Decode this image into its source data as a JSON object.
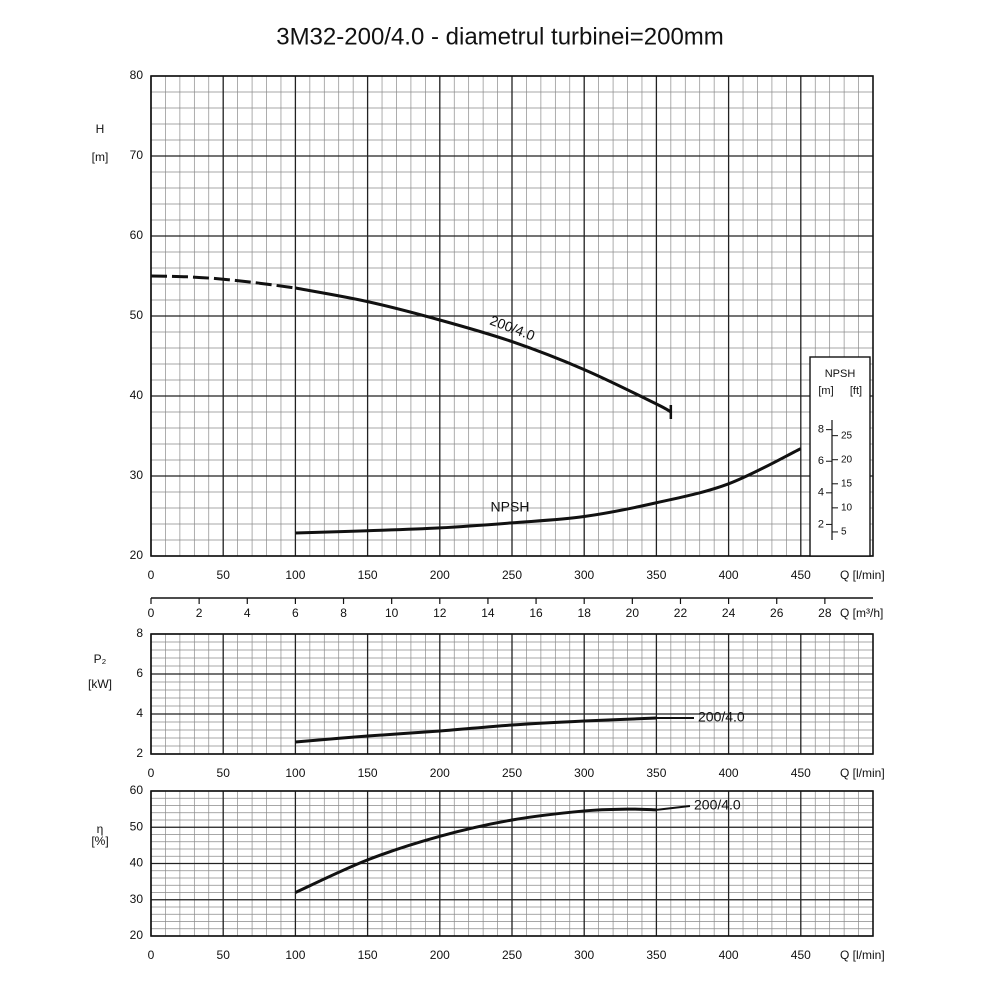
{
  "title": "3M32-200/4.0 - diametrul turbinei=200mm",
  "chart_data": [
    {
      "type": "line",
      "ylabel": "H",
      "yunit": "[m]",
      "xlabel": "Q [l/min]",
      "xlim": [
        0,
        500
      ],
      "xticks": [
        0,
        50,
        100,
        150,
        200,
        250,
        300,
        350,
        400,
        450
      ],
      "ylim": [
        20,
        80
      ],
      "yticks": [
        20,
        30,
        40,
        50,
        60,
        70,
        80
      ],
      "grid": true,
      "x2label": "Q [m³/h]",
      "x2lim": [
        0,
        30
      ],
      "x2ticks": [
        0,
        2,
        4,
        6,
        8,
        10,
        12,
        14,
        16,
        18,
        20,
        22,
        24,
        26,
        28
      ],
      "y2label": "NPSH",
      "y2unit": "[m]",
      "y2lim": [
        0,
        12.6
      ],
      "y2ticks": [
        2,
        4,
        6,
        8
      ],
      "y3unit": "[ft]",
      "y3lim": [
        0,
        41.34
      ],
      "y3ticks": [
        5,
        10,
        15,
        20,
        25
      ],
      "series": [
        {
          "style": "dashed",
          "color": "#111111",
          "x": [
            0,
            25,
            50,
            75,
            100
          ],
          "values": [
            55,
            54.9,
            54.6,
            54.1,
            53.5
          ]
        },
        {
          "name": "200/4.0",
          "color": "#111111",
          "x": [
            100,
            150,
            200,
            250,
            300,
            350,
            360
          ],
          "values": [
            53.5,
            51.8,
            49.5,
            46.8,
            43.3,
            39,
            38
          ]
        },
        {
          "name": "NPSH",
          "axis": "y2",
          "color": "#111111",
          "x": [
            100,
            150,
            200,
            250,
            300,
            350,
            400,
            450
          ],
          "values": [
            1.46,
            1.6,
            1.78,
            2.1,
            2.5,
            3.37,
            4.57,
            6.8
          ]
        }
      ]
    },
    {
      "type": "line",
      "ylabel": "P₂",
      "yunit": "[kW]",
      "xlabel": "Q [l/min]",
      "xlim": [
        0,
        500
      ],
      "xticks": [
        0,
        50,
        100,
        150,
        200,
        250,
        300,
        350,
        400,
        450
      ],
      "ylim": [
        2,
        8
      ],
      "yticks": [
        2,
        4,
        6,
        8
      ],
      "grid": true,
      "series": [
        {
          "name": "200/4.0",
          "color": "#111111",
          "x": [
            100,
            150,
            200,
            250,
            300,
            350
          ],
          "values": [
            2.6,
            2.9,
            3.15,
            3.45,
            3.65,
            3.8
          ]
        }
      ]
    },
    {
      "type": "line",
      "ylabel": "η",
      "yunit": "[%]",
      "xlabel": "Q [l/min]",
      "xlim": [
        0,
        500
      ],
      "xticks": [
        0,
        50,
        100,
        150,
        200,
        250,
        300,
        350,
        400,
        450
      ],
      "ylim": [
        20,
        60
      ],
      "yticks": [
        20,
        30,
        40,
        50,
        60
      ],
      "grid": true,
      "series": [
        {
          "name": "200/4.0",
          "color": "#111111",
          "x": [
            100,
            150,
            200,
            250,
            300,
            330,
            350
          ],
          "values": [
            32,
            41,
            47.5,
            52,
            54.5,
            55,
            54.8
          ]
        }
      ]
    }
  ]
}
